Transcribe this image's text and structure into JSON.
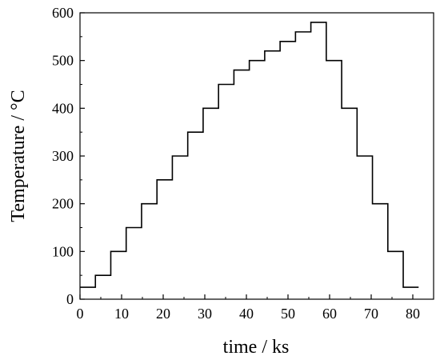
{
  "chart_data": {
    "type": "line",
    "title": "",
    "xlabel": "time / ks",
    "ylabel": "Temperature / °C",
    "xlim": [
      0,
      85
    ],
    "ylim": [
      0,
      600
    ],
    "x_ticks": [
      0,
      10,
      20,
      30,
      40,
      50,
      60,
      70,
      80
    ],
    "y_ticks": [
      0,
      100,
      200,
      300,
      400,
      500,
      600
    ],
    "grid": false,
    "legend": "none",
    "line_color": "#000000",
    "series": [
      {
        "x": [
          0,
          3.7,
          3.7,
          7.4,
          7.4,
          11.1,
          11.1,
          14.8,
          14.8,
          18.5,
          18.5,
          22.2,
          22.2,
          25.9,
          25.9,
          29.6,
          29.6,
          33.3,
          33.3,
          37.0,
          37.0,
          40.7,
          40.7,
          44.4,
          44.4,
          48.1,
          48.1,
          51.8,
          51.8,
          55.5,
          55.5,
          59.2,
          59.2,
          62.9,
          62.9,
          66.6,
          66.6,
          70.3,
          70.3,
          74.0,
          74.0,
          77.7,
          77.7,
          81.4
        ],
        "y": [
          25,
          25,
          50,
          50,
          100,
          100,
          150,
          150,
          200,
          200,
          250,
          250,
          300,
          300,
          350,
          350,
          400,
          400,
          450,
          450,
          480,
          480,
          500,
          500,
          520,
          520,
          540,
          540,
          560,
          560,
          580,
          580,
          500,
          500,
          400,
          400,
          300,
          300,
          200,
          200,
          100,
          100,
          25,
          25
        ]
      }
    ]
  }
}
